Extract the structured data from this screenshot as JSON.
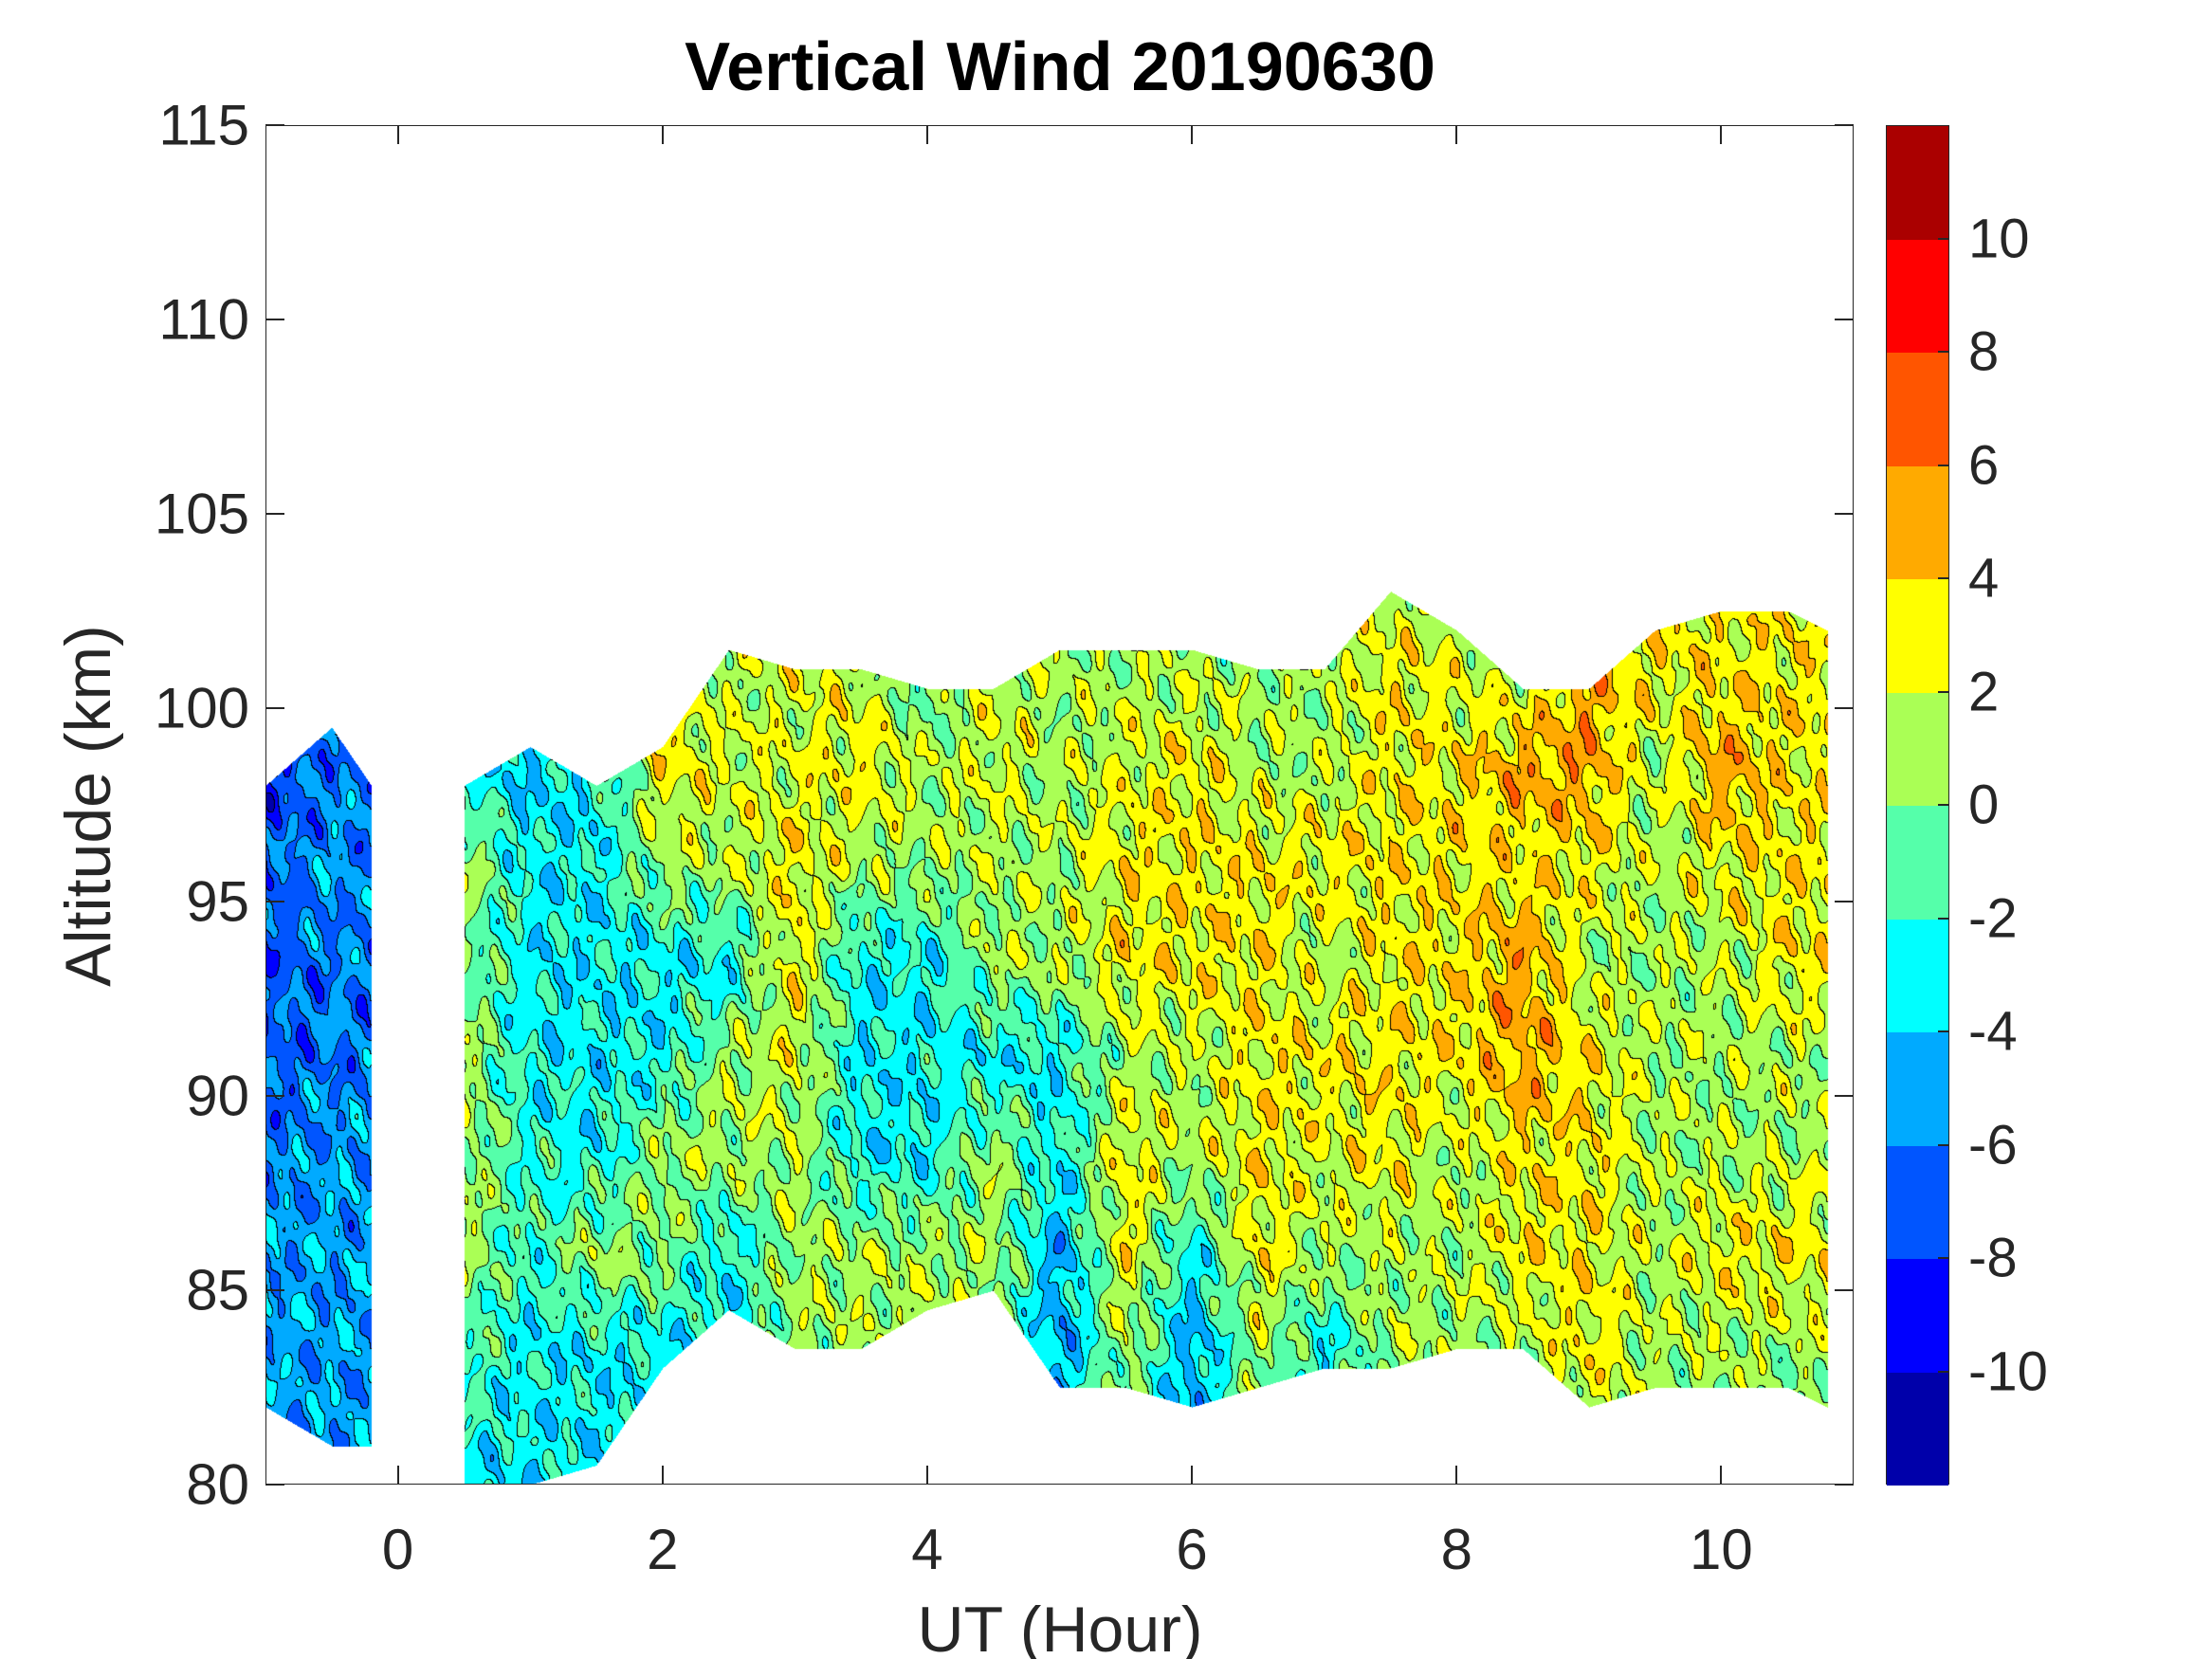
{
  "chart_data": {
    "type": "heatmap",
    "subtype": "filled-contour",
    "title": "Vertical Wind 20190630",
    "xlabel": "UT (Hour)",
    "ylabel": "Altitude (km)",
    "xlim": [
      -1,
      11
    ],
    "ylim": [
      80,
      115
    ],
    "xticks": [
      0,
      2,
      4,
      6,
      8,
      10
    ],
    "yticks": [
      80,
      85,
      90,
      95,
      100,
      105,
      110,
      115
    ],
    "grid": false,
    "colorbar": {
      "range": [
        -12,
        12
      ],
      "levels": [
        -12,
        -10,
        -8,
        -6,
        -4,
        -2,
        0,
        2,
        4,
        6,
        8,
        10,
        12
      ],
      "ticks": [
        -10,
        -8,
        -6,
        -4,
        -2,
        0,
        2,
        4,
        6,
        8,
        10
      ],
      "colors": [
        "#0000aa",
        "#0000ff",
        "#0055ff",
        "#00aaff",
        "#00ffff",
        "#55ffaa",
        "#aaff55",
        "#ffff00",
        "#ffaa00",
        "#ff5500",
        "#ff0000",
        "#aa0000"
      ],
      "placement": "right"
    },
    "coverage_segments": [
      [
        -1,
        -0.2
      ],
      [
        0.5,
        10.8
      ]
    ],
    "altitudes": [
      81,
      83.5,
      86,
      88.5,
      91,
      93.5,
      96,
      98.5,
      101,
      103.5
    ],
    "columns": [
      {
        "x": -1.0,
        "bottom": 82,
        "top": 98,
        "w": [
          -5,
          -5,
          -5,
          -6,
          -7,
          -7,
          -7,
          -8,
          null,
          null
        ]
      },
      {
        "x": -0.5,
        "bottom": 81,
        "top": 99.5,
        "w": [
          -5,
          -5,
          -5,
          -5,
          -6,
          -6,
          -5,
          -6,
          null,
          null
        ]
      },
      {
        "x": -0.2,
        "bottom": 81,
        "top": 98,
        "w": [
          -5,
          -5,
          -5,
          -5,
          -6,
          -6,
          -6,
          -6,
          null,
          null
        ]
      },
      {
        "x": 0.5,
        "bottom": 80,
        "top": 98,
        "w": [
          -3,
          -1,
          1,
          1,
          1,
          0,
          1,
          -3,
          null,
          null
        ]
      },
      {
        "x": 1.0,
        "bottom": 80,
        "top": 99,
        "w": [
          -3,
          -3,
          -2,
          -2,
          -3,
          -3,
          -3,
          -4,
          null,
          null
        ]
      },
      {
        "x": 1.5,
        "bottom": 80.5,
        "top": 98,
        "w": [
          -3,
          -3,
          1,
          -3,
          -3,
          -3,
          -3,
          -3,
          null,
          null
        ]
      },
      {
        "x": 2.0,
        "bottom": 83,
        "top": 99,
        "w": [
          null,
          -3,
          0,
          1,
          -3,
          -3,
          1,
          3,
          null,
          null
        ]
      },
      {
        "x": 2.5,
        "bottom": 84.5,
        "top": 101.5,
        "w": [
          null,
          -3,
          -3,
          1,
          1,
          -3,
          1,
          2,
          1,
          null
        ]
      },
      {
        "x": 3.0,
        "bottom": 83.5,
        "top": 101,
        "w": [
          null,
          1,
          1,
          1,
          2,
          3,
          3,
          2,
          2,
          null
        ]
      },
      {
        "x": 3.5,
        "bottom": 83.5,
        "top": 101,
        "w": [
          null,
          1,
          1,
          -3,
          -3,
          -3,
          1,
          3,
          2,
          null
        ]
      },
      {
        "x": 4.0,
        "bottom": 84.5,
        "top": 100.5,
        "w": [
          null,
          1,
          1,
          -3,
          -3,
          -3,
          1,
          1,
          -1,
          null
        ]
      },
      {
        "x": 4.5,
        "bottom": 85,
        "top": 100.5,
        "w": [
          null,
          1,
          1,
          1,
          -3,
          1,
          1,
          2,
          2,
          null
        ]
      },
      {
        "x": 5.0,
        "bottom": 82.5,
        "top": 101.5,
        "w": [
          null,
          -5,
          -5,
          -3,
          -3,
          1,
          1,
          1,
          1,
          null
        ]
      },
      {
        "x": 5.5,
        "bottom": 82.5,
        "top": 101.5,
        "w": [
          null,
          1,
          3,
          3,
          1,
          3,
          3,
          2,
          1,
          null
        ]
      },
      {
        "x": 6.0,
        "bottom": 82,
        "top": 101.5,
        "w": [
          null,
          -5,
          -3,
          1,
          1,
          3,
          3,
          3,
          1,
          null
        ]
      },
      {
        "x": 6.5,
        "bottom": 82.5,
        "top": 101,
        "w": [
          null,
          1,
          3,
          3,
          3,
          3,
          3,
          1,
          1,
          null
        ]
      },
      {
        "x": 7.0,
        "bottom": 83,
        "top": 101,
        "w": [
          null,
          -3,
          1,
          2,
          3,
          1,
          3,
          1,
          1,
          null
        ]
      },
      {
        "x": 7.5,
        "bottom": 83,
        "top": 103,
        "w": [
          null,
          1,
          1,
          3,
          3,
          3,
          3,
          3,
          3,
          1
        ]
      },
      {
        "x": 8.0,
        "bottom": 83.5,
        "top": 102,
        "w": [
          null,
          1,
          1,
          1,
          3,
          3,
          3,
          3,
          2,
          null
        ]
      },
      {
        "x": 8.5,
        "bottom": 83.5,
        "top": 100.5,
        "w": [
          null,
          1,
          3,
          3,
          5,
          5,
          3,
          5,
          1,
          null
        ]
      },
      {
        "x": 9.0,
        "bottom": 82,
        "top": 100.5,
        "w": [
          1,
          3,
          3,
          3,
          3,
          1,
          3,
          5,
          5,
          null
        ]
      },
      {
        "x": 9.5,
        "bottom": 82.5,
        "top": 102,
        "w": [
          1,
          1,
          1,
          1,
          1,
          1,
          1,
          1,
          3,
          null
        ]
      },
      {
        "x": 10.0,
        "bottom": 82.5,
        "top": 102.5,
        "w": [
          1,
          1,
          3,
          1,
          1,
          1,
          3,
          5,
          3,
          null
        ]
      },
      {
        "x": 10.5,
        "bottom": 82.5,
        "top": 102.5,
        "w": [
          -3,
          1,
          3,
          1,
          1,
          3,
          3,
          3,
          3,
          null
        ]
      },
      {
        "x": 10.8,
        "bottom": 82,
        "top": 102,
        "w": [
          1,
          1,
          3,
          1,
          1,
          3,
          3,
          3,
          3,
          null
        ]
      }
    ]
  }
}
